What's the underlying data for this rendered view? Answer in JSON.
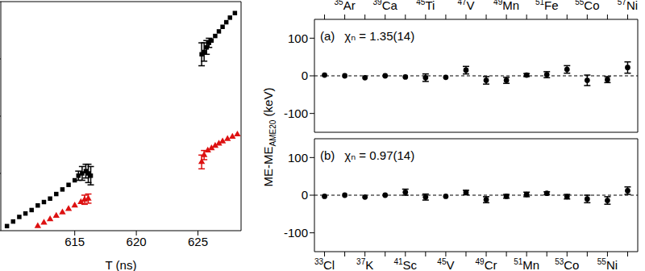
{
  "chart_data": [
    {
      "type": "scatter",
      "x_label": "T (ns)",
      "xlim": [
        609,
        628.5
      ],
      "xticks": [
        615,
        620,
        625
      ],
      "ylim": [
        0,
        100
      ],
      "yticks": [
        0,
        25,
        50,
        75,
        100
      ],
      "tick_labels": "x",
      "series": [
        {
          "color": "#000000",
          "marker": "square",
          "x": [
            609.5,
            610,
            610.5,
            611,
            611.5,
            612,
            612.5,
            613,
            613.5,
            614,
            614.5,
            615,
            615.3,
            615.6,
            615.9,
            616.1,
            616.3,
            625.3,
            625.5,
            625.7,
            625.9,
            626.1,
            626.4,
            626.7,
            627,
            627.3,
            627.6,
            628
          ],
          "values": [
            2,
            4,
            6,
            7.5,
            9,
            11,
            12.5,
            14,
            16,
            18,
            20,
            22,
            24,
            25,
            26,
            25,
            24,
            77,
            78,
            80,
            82,
            83,
            85,
            87,
            89,
            91,
            93,
            95
          ],
          "errors": [
            null,
            null,
            null,
            null,
            null,
            null,
            null,
            null,
            null,
            null,
            null,
            null,
            2,
            3,
            3,
            4,
            4,
            5,
            4,
            3,
            2,
            null,
            null,
            null,
            null,
            null,
            null,
            null
          ]
        },
        {
          "color": "#dd1111",
          "marker": "triangle",
          "x": [
            612,
            612.5,
            613,
            613.5,
            614,
            614.5,
            615,
            615.5,
            615.8,
            616.1,
            625.3,
            625.5,
            625.8,
            626.1,
            626.4,
            626.7,
            627,
            627.4,
            627.8,
            628.2
          ],
          "values": [
            2,
            3.5,
            5,
            6.5,
            8,
            9.5,
            11,
            12.5,
            13.5,
            14,
            30,
            33,
            35,
            36,
            37,
            38,
            39,
            40,
            41,
            42
          ],
          "errors": [
            null,
            null,
            null,
            null,
            null,
            null,
            null,
            null,
            2,
            2,
            3,
            2,
            null,
            null,
            null,
            null,
            null,
            null,
            null,
            null
          ]
        }
      ]
    },
    {
      "type": "scatter",
      "annotations": [
        "(a)",
        "χₙ = 1.35(14)"
      ],
      "y_label": "ME-MEAME20 (keV)",
      "y_label_subscript": "AME20",
      "categories": [
        null,
        "35Ar",
        null,
        "39Ca",
        null,
        "45Ti",
        null,
        "47V",
        null,
        "49Mn",
        null,
        "51Fe",
        null,
        "55Co",
        null,
        "57Ni"
      ],
      "values": [
        2,
        0,
        -5,
        0,
        -3,
        -5,
        -4,
        15,
        -12,
        -12,
        2,
        3,
        17,
        -12,
        -10,
        22
      ],
      "errors": [
        null,
        null,
        null,
        null,
        null,
        10,
        null,
        10,
        10,
        8,
        4,
        8,
        10,
        14,
        8,
        15
      ],
      "color": "#000000",
      "marker": "circle",
      "ylim": [
        -150,
        150
      ],
      "yticks": [
        -100,
        0,
        100
      ],
      "reference_y": 0
    },
    {
      "type": "scatter",
      "annotations": [
        "(b)",
        "χₙ = 0.97(14)"
      ],
      "categories": [
        "33Cl",
        null,
        "37K",
        null,
        "41Sc",
        null,
        "45V",
        null,
        "49Cr",
        null,
        "51Mn",
        null,
        "53Co",
        null,
        "55Ni",
        null
      ],
      "values": [
        -3,
        0,
        -5,
        0,
        8,
        -5,
        -3,
        7,
        -12,
        -3,
        2,
        5,
        -4,
        -10,
        -14,
        12
      ],
      "errors": [
        null,
        null,
        null,
        null,
        8,
        8,
        null,
        6,
        8,
        5,
        6,
        4,
        6,
        10,
        10,
        10
      ],
      "color": "#000000",
      "marker": "circle",
      "ylim": [
        -150,
        150
      ],
      "yticks": [
        -100,
        0,
        100
      ],
      "reference_y": 0
    }
  ]
}
